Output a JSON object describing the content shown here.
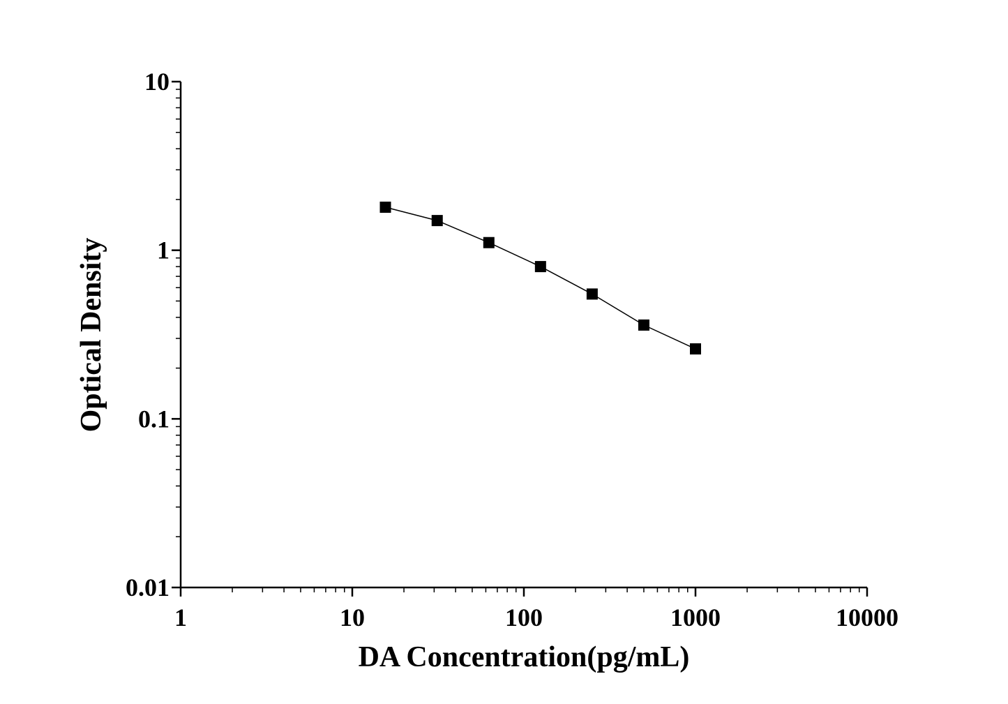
{
  "chart_data": {
    "type": "line",
    "xlabel": "DA Concentration(pg/mL)",
    "ylabel": "Optical Density",
    "x": [
      15.6,
      31.25,
      62.5,
      125,
      250,
      500,
      1000
    ],
    "series": [
      {
        "color": "#000000",
        "marker": "square",
        "values": [
          1.8,
          1.5,
          1.11,
          0.8,
          0.55,
          0.36,
          0.26
        ]
      }
    ],
    "xscale": "log",
    "yscale": "log",
    "xlim": [
      1,
      10000
    ],
    "xticks": [
      1,
      10,
      100,
      1000,
      10000
    ],
    "ylim": [
      0.01,
      10
    ],
    "yticks": [
      0.01,
      0.1,
      1,
      10
    ],
    "grid": false
  }
}
